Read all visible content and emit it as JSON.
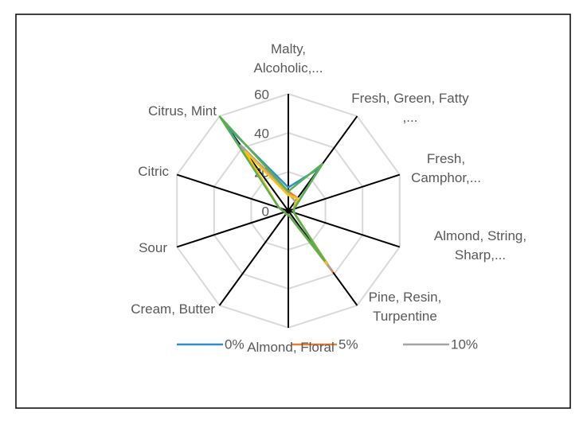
{
  "chart_data": {
    "type": "radar",
    "categories": [
      "Malty, Alcoholic,...",
      "Fresh, Green, Fatty ,...",
      "Fresh, Camphor,...",
      "Almond, String, Sharp,...",
      "Pine, Resin, Turpentine",
      "Almond, Floral",
      "Cream, Butter",
      "Sour",
      "Citric",
      "Citrus, Mint"
    ],
    "series": [
      {
        "name": "0%",
        "color": "#2e8fd0",
        "values": [
          12,
          27,
          3,
          3,
          30,
          2,
          2,
          2,
          5,
          54
        ]
      },
      {
        "name": "5%",
        "color": "#ed7d31",
        "values": [
          10,
          8,
          3,
          3,
          39,
          2,
          2,
          2,
          5,
          40
        ]
      },
      {
        "name": "10%",
        "color": "#a5a5a5",
        "values": [
          9,
          6,
          3,
          3,
          37,
          2,
          2,
          2,
          5,
          42
        ]
      },
      {
        "color": "#ffc000",
        "values": [
          8,
          8,
          3,
          3,
          34,
          2,
          2,
          2,
          5,
          38
        ]
      },
      {
        "color": "#5ab04a",
        "values": [
          10,
          30,
          3,
          3,
          32,
          2,
          2,
          2,
          5,
          60
        ]
      }
    ],
    "ylim": [
      0,
      60
    ],
    "yticks": [
      0,
      20,
      40,
      60
    ],
    "grid": true
  }
}
